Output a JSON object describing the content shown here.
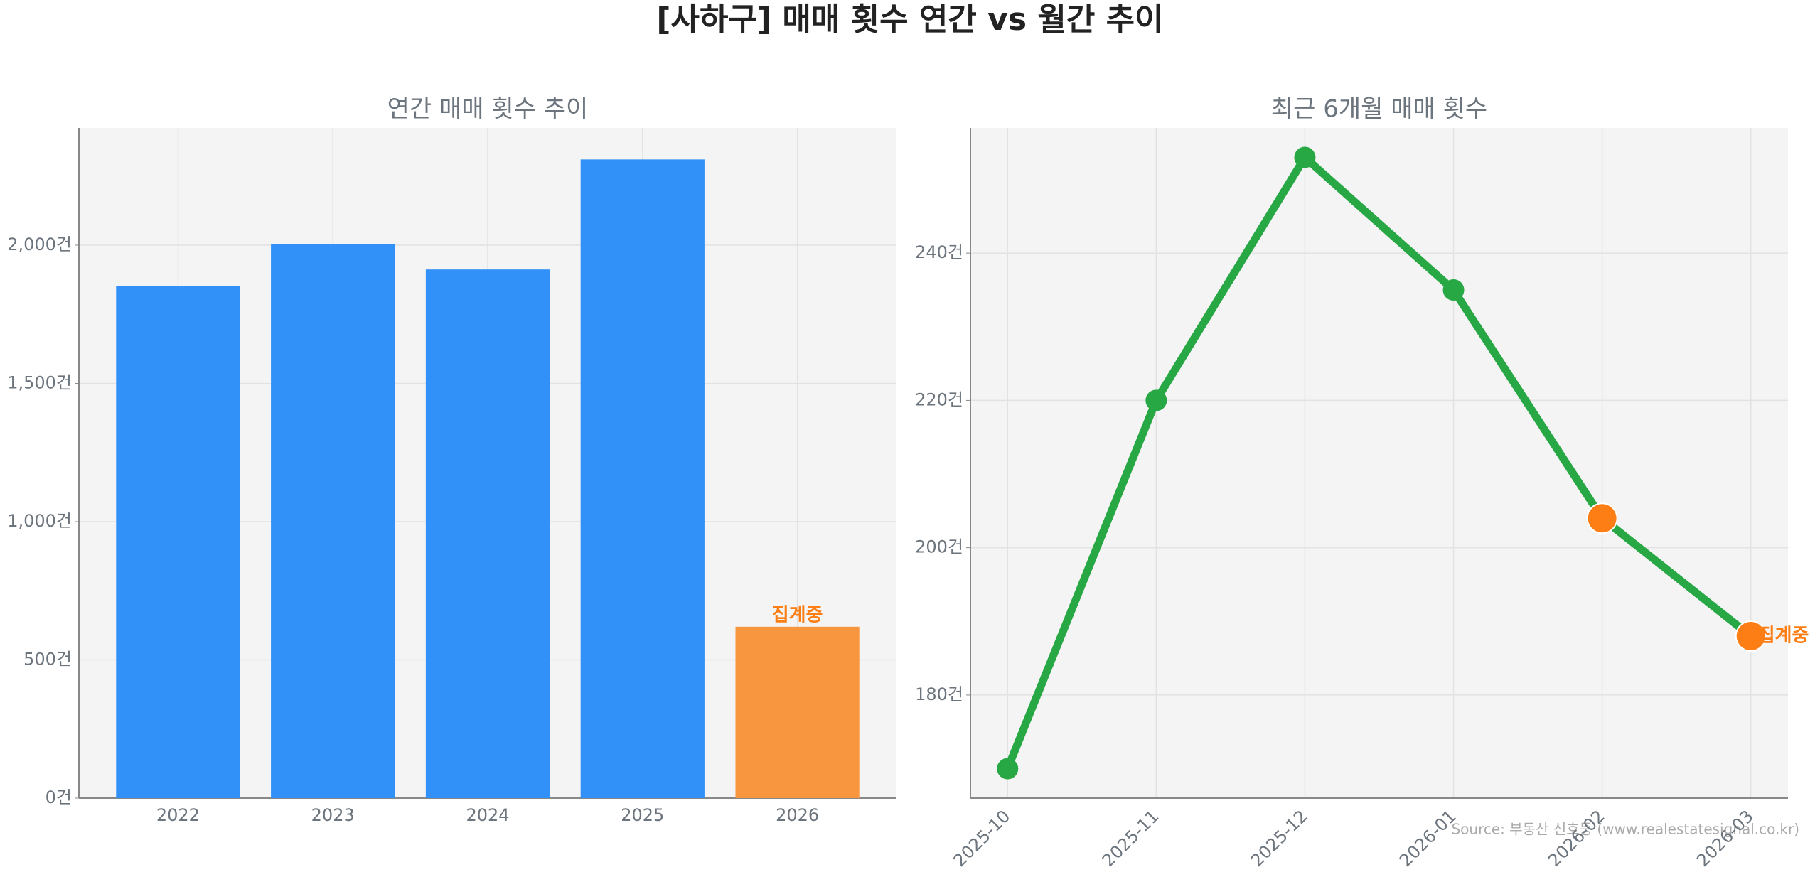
{
  "title": "[사하구] 매매 횟수 연간 vs 월간 추이",
  "source": "Source: 부동산 신호등 (www.realestatesignal.co.kr)",
  "chart_data": [
    {
      "type": "bar",
      "title": "연간 매매 횟수 추이",
      "categories": [
        "2022",
        "2023",
        "2024",
        "2025",
        "2026"
      ],
      "values": [
        1853,
        2004,
        1912,
        2310,
        620
      ],
      "colors": [
        "#3291f8",
        "#3291f8",
        "#3291f8",
        "#3291f8",
        "#f89640"
      ],
      "ylim": [
        0,
        2424
      ],
      "yticks": [
        {
          "value": 0,
          "label": "0건"
        },
        {
          "value": 500,
          "label": "500건"
        },
        {
          "value": 1000,
          "label": "1,000건"
        },
        {
          "value": 1500,
          "label": "1,500건"
        },
        {
          "value": 2000,
          "label": "2,000건"
        }
      ],
      "grid": true,
      "annotation": {
        "text": "집계중",
        "category": "2026",
        "color": "#fd7e14"
      }
    },
    {
      "type": "line",
      "title": "최근 6개월 매매 횟수",
      "categories": [
        "2025-10",
        "2025-11",
        "2025-12",
        "2026-01",
        "2026-02",
        "2026-03"
      ],
      "values": [
        170,
        220,
        253,
        235,
        204,
        188
      ],
      "color": "#28a745",
      "point_colors": [
        "#28a745",
        "#28a745",
        "#28a745",
        "#28a745",
        "#fd7e14",
        "#fd7e14"
      ],
      "ylim": [
        166,
        257
      ],
      "yticks": [
        {
          "value": 180,
          "label": "180건"
        },
        {
          "value": 200,
          "label": "200건"
        },
        {
          "value": 220,
          "label": "220건"
        },
        {
          "value": 240,
          "label": "240건"
        }
      ],
      "grid": true,
      "annotation": {
        "text": "집계중",
        "category": "2026-03",
        "color": "#fd7e14"
      }
    }
  ]
}
